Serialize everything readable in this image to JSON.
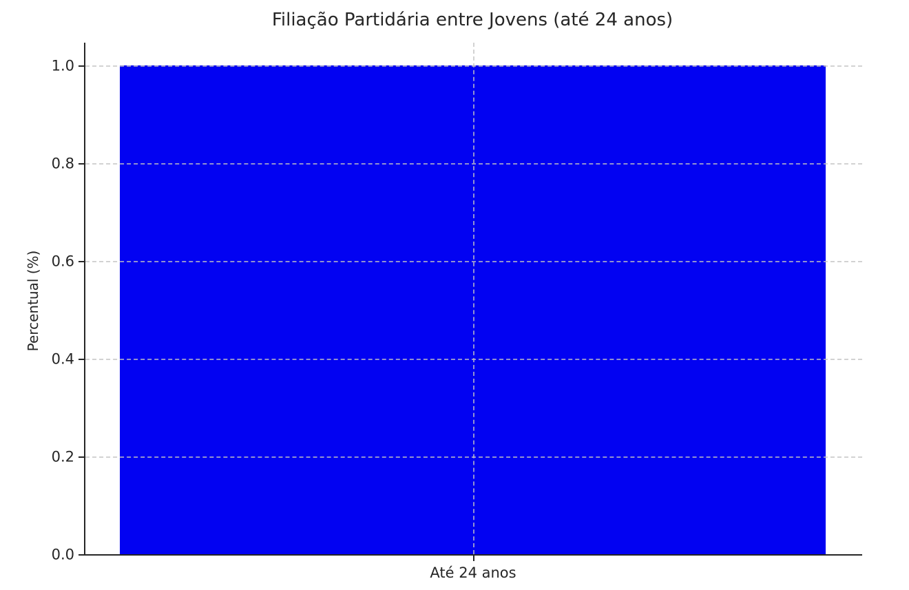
{
  "chart_data": {
    "type": "bar",
    "title": "Filiação Partidária entre Jovens (até 24 anos)",
    "categories": [
      "Até 24 anos"
    ],
    "values": [
      1.0
    ],
    "xlabel": "",
    "ylabel": "Percentual (%)",
    "ylim": [
      0,
      1.05
    ],
    "ytick_values": [
      0.0,
      0.2,
      0.4,
      0.6,
      0.8,
      1.0
    ],
    "yticks": [
      "0.0",
      "0.2",
      "0.4",
      "0.6",
      "0.8",
      "1.0"
    ],
    "grid": true,
    "grid_style": "dashed",
    "legend": false,
    "bar_color": "#0202f2",
    "grid_color": "#c3c3c3",
    "spine_color": "#262626",
    "text_color": "#262626",
    "background_color": "#ffffff"
  }
}
